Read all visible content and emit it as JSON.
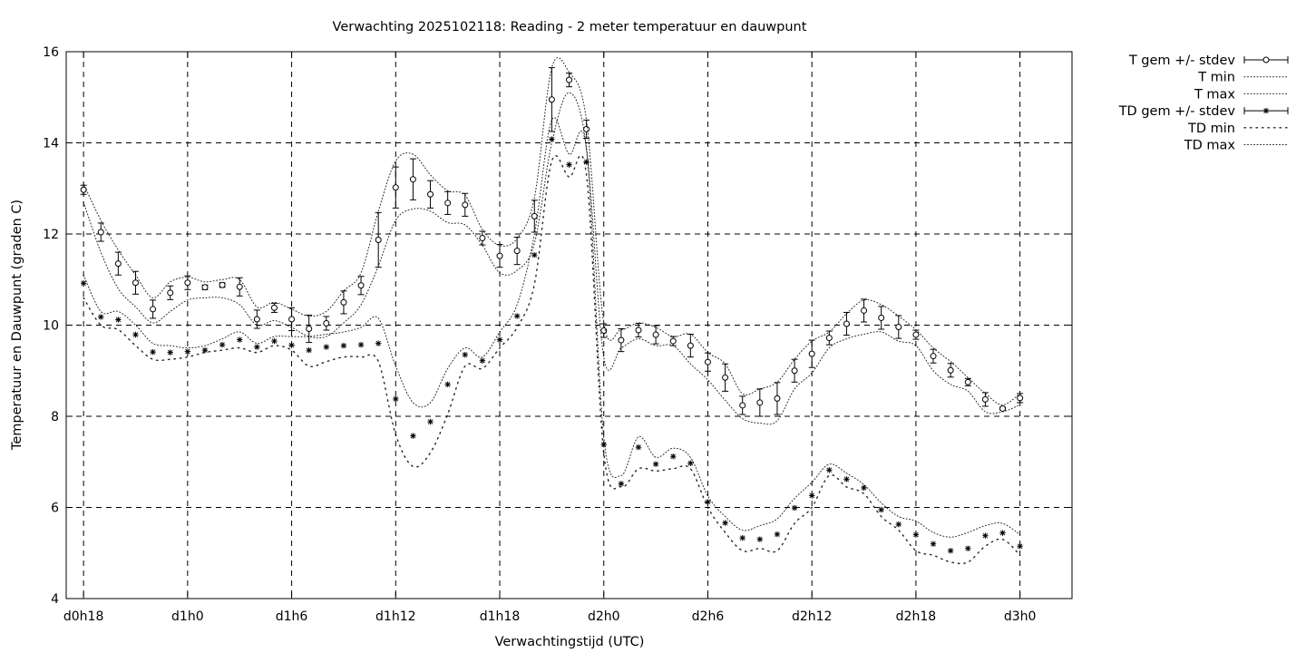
{
  "chart_data": {
    "type": "line",
    "title": "Verwachting 2025102118: Reading - 2 meter temperatuur en dauwpunt",
    "xlabel": "Verwachtingstijd (UTC)",
    "ylabel": "Temperatuur en Dauwpunt (graden C)",
    "xlim": [
      -1,
      57
    ],
    "ylim": [
      4,
      16
    ],
    "x_unit": "hours since d0h18",
    "x_ticks": [
      {
        "x": 0,
        "label": "d0h18"
      },
      {
        "x": 6,
        "label": "d1h0"
      },
      {
        "x": 12,
        "label": "d1h6"
      },
      {
        "x": 18,
        "label": "d1h12"
      },
      {
        "x": 24,
        "label": "d1h18"
      },
      {
        "x": 30,
        "label": "d2h0"
      },
      {
        "x": 36,
        "label": "d2h6"
      },
      {
        "x": 42,
        "label": "d2h12"
      },
      {
        "x": 48,
        "label": "d2h18"
      },
      {
        "x": 54,
        "label": "d3h0"
      }
    ],
    "y_ticks": [
      4,
      6,
      8,
      10,
      12,
      14,
      16
    ],
    "grid": true,
    "legend_position": "outside-top-right",
    "x": [
      0,
      1,
      2,
      3,
      4,
      5,
      6,
      7,
      8,
      9,
      10,
      11,
      12,
      13,
      14,
      15,
      16,
      17,
      18,
      19,
      20,
      21,
      22,
      23,
      24,
      25,
      26,
      27,
      28,
      29,
      30,
      31,
      32,
      33,
      34,
      35,
      36,
      37,
      38,
      39,
      40,
      41,
      42,
      43,
      44,
      45,
      46,
      47,
      48,
      49,
      50,
      51,
      52,
      53,
      54
    ],
    "series": [
      {
        "name": "T gem +/- stdev",
        "style": "errorbars-circle",
        "values": [
          12.97,
          12.04,
          11.35,
          10.93,
          10.35,
          10.71,
          10.93,
          10.83,
          10.88,
          10.84,
          10.13,
          10.38,
          10.13,
          9.92,
          10.04,
          10.5,
          10.87,
          11.87,
          13.02,
          13.2,
          12.87,
          12.68,
          12.64,
          11.91,
          11.52,
          11.63,
          12.39,
          14.95,
          15.38,
          14.3,
          9.88,
          9.67,
          9.89,
          9.79,
          9.65,
          9.55,
          9.19,
          8.85,
          8.24,
          8.3,
          8.39,
          9.0,
          9.37,
          9.72,
          10.03,
          10.32,
          10.16,
          9.96,
          9.79,
          9.32,
          9.01,
          8.75,
          8.37,
          8.17,
          8.4
        ],
        "stdev": [
          0.1,
          0.2,
          0.25,
          0.25,
          0.2,
          0.15,
          0.15,
          0.05,
          0.05,
          0.2,
          0.2,
          0.1,
          0.25,
          0.3,
          0.15,
          0.25,
          0.2,
          0.6,
          0.45,
          0.45,
          0.3,
          0.25,
          0.25,
          0.15,
          0.25,
          0.3,
          0.35,
          0.7,
          0.15,
          0.2,
          0.15,
          0.25,
          0.15,
          0.2,
          0.1,
          0.25,
          0.2,
          0.3,
          0.2,
          0.3,
          0.35,
          0.25,
          0.3,
          0.15,
          0.25,
          0.25,
          0.25,
          0.25,
          0.1,
          0.15,
          0.15,
          0.08,
          0.15,
          0.03,
          0.1
        ]
      },
      {
        "name": "T min",
        "style": "dotted",
        "values": [
          12.7,
          11.6,
          10.8,
          10.4,
          10.05,
          10.3,
          10.55,
          10.6,
          10.6,
          10.45,
          10.0,
          10.1,
          9.95,
          9.75,
          9.75,
          10.05,
          10.45,
          11.3,
          12.3,
          12.55,
          12.5,
          12.25,
          12.2,
          11.75,
          11.15,
          11.2,
          11.8,
          14.0,
          15.1,
          13.9,
          9.3,
          9.5,
          9.7,
          9.55,
          9.55,
          9.15,
          8.8,
          8.35,
          7.95,
          7.85,
          7.9,
          8.6,
          8.95,
          9.5,
          9.7,
          9.8,
          9.85,
          9.65,
          9.55,
          9.0,
          8.7,
          8.55,
          8.1,
          8.1,
          8.25
        ]
      },
      {
        "name": "T max",
        "style": "dotted",
        "values": [
          13.1,
          12.3,
          11.65,
          11.1,
          10.6,
          10.95,
          11.05,
          10.95,
          11.0,
          11.0,
          10.4,
          10.5,
          10.35,
          10.2,
          10.3,
          10.75,
          11.15,
          12.5,
          13.6,
          13.75,
          13.3,
          12.95,
          12.85,
          12.1,
          11.75,
          11.9,
          12.8,
          15.65,
          15.55,
          14.5,
          10.05,
          9.9,
          10.05,
          9.95,
          9.75,
          9.8,
          9.4,
          9.15,
          8.5,
          8.6,
          8.75,
          9.25,
          9.65,
          9.85,
          10.25,
          10.55,
          10.45,
          10.2,
          9.9,
          9.5,
          9.2,
          8.85,
          8.5,
          8.25,
          8.5
        ]
      },
      {
        "name": "TD gem +/- stdev",
        "style": "errorbars-star",
        "values": [
          10.92,
          10.18,
          10.12,
          9.79,
          9.41,
          9.4,
          9.42,
          9.45,
          9.57,
          9.68,
          9.52,
          9.65,
          9.56,
          9.45,
          9.52,
          9.55,
          9.57,
          9.6,
          8.38,
          7.57,
          7.88,
          8.7,
          9.35,
          9.22,
          9.68,
          10.2,
          11.54,
          14.08,
          13.52,
          13.58,
          7.38,
          6.52,
          7.32,
          6.95,
          7.12,
          6.97,
          6.12,
          5.66,
          5.33,
          5.3,
          5.41,
          5.99,
          6.26,
          6.82,
          6.62,
          6.43,
          5.95,
          5.63,
          5.4,
          5.2,
          5.05,
          5.1,
          5.38,
          5.44,
          5.15
        ]
      },
      {
        "name": "TD min",
        "style": "dotted-sparse",
        "values": [
          10.6,
          10.0,
          9.9,
          9.55,
          9.25,
          9.25,
          9.3,
          9.4,
          9.45,
          9.5,
          9.4,
          9.55,
          9.45,
          9.1,
          9.2,
          9.3,
          9.3,
          9.2,
          7.6,
          6.9,
          7.2,
          8.05,
          9.1,
          9.05,
          9.5,
          9.95,
          10.9,
          13.6,
          13.25,
          13.3,
          7.2,
          6.45,
          6.85,
          6.8,
          6.85,
          6.85,
          6.0,
          5.45,
          5.05,
          5.1,
          5.05,
          5.65,
          6.0,
          6.7,
          6.45,
          6.3,
          5.8,
          5.5,
          5.05,
          4.95,
          4.8,
          4.8,
          5.15,
          5.3,
          4.95
        ]
      },
      {
        "name": "TD max",
        "style": "dotted",
        "values": [
          11.1,
          10.3,
          10.3,
          10.0,
          9.6,
          9.55,
          9.5,
          9.55,
          9.7,
          9.85,
          9.6,
          9.75,
          9.75,
          9.75,
          9.8,
          9.85,
          9.95,
          10.15,
          9.1,
          8.3,
          8.3,
          9.05,
          9.5,
          9.3,
          9.85,
          10.45,
          12.0,
          14.5,
          13.75,
          13.85,
          7.55,
          6.7,
          7.55,
          7.1,
          7.3,
          7.1,
          6.25,
          5.8,
          5.5,
          5.6,
          5.75,
          6.2,
          6.55,
          6.95,
          6.75,
          6.5,
          6.1,
          5.8,
          5.7,
          5.45,
          5.35,
          5.45,
          5.6,
          5.65,
          5.4
        ]
      }
    ]
  }
}
